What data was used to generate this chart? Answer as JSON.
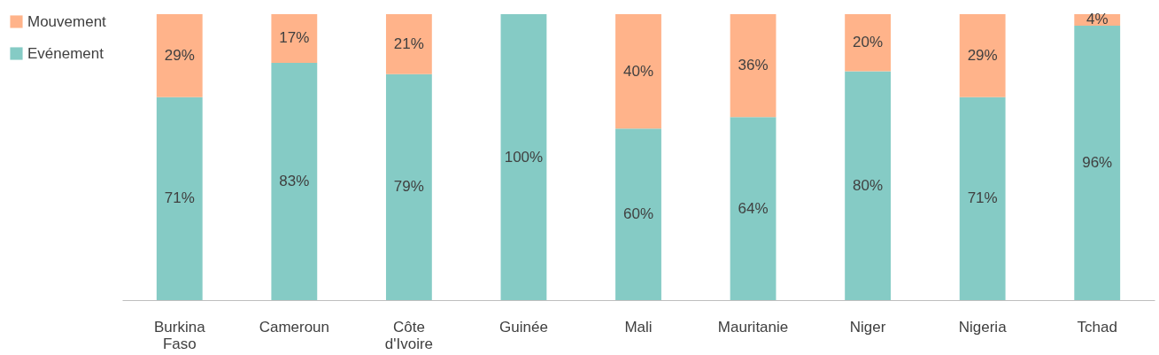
{
  "chart_data": {
    "type": "bar",
    "stacked": true,
    "categories": [
      "Burkina Faso",
      "Cameroun",
      "Côte d'Ivoire",
      "Guinée",
      "Mali",
      "Mauritanie",
      "Niger",
      "Nigeria",
      "Tchad"
    ],
    "series": [
      {
        "name": "Evénement",
        "color": "#85cbc5",
        "values": [
          71,
          83,
          79,
          100,
          60,
          64,
          80,
          71,
          96
        ],
        "value_labels": [
          "71%",
          "83%",
          "79%",
          "100%",
          "60%",
          "64%",
          "80%",
          "71%",
          "96%"
        ]
      },
      {
        "name": "Mouvement",
        "color": "#ffb38a",
        "values": [
          29,
          17,
          21,
          null,
          40,
          36,
          20,
          29,
          4
        ],
        "value_labels": [
          "29%",
          "17%",
          "21%",
          null,
          "40%",
          "36%",
          "20%",
          "29%",
          "4%"
        ]
      }
    ],
    "legend": "left",
    "grid": false
  }
}
